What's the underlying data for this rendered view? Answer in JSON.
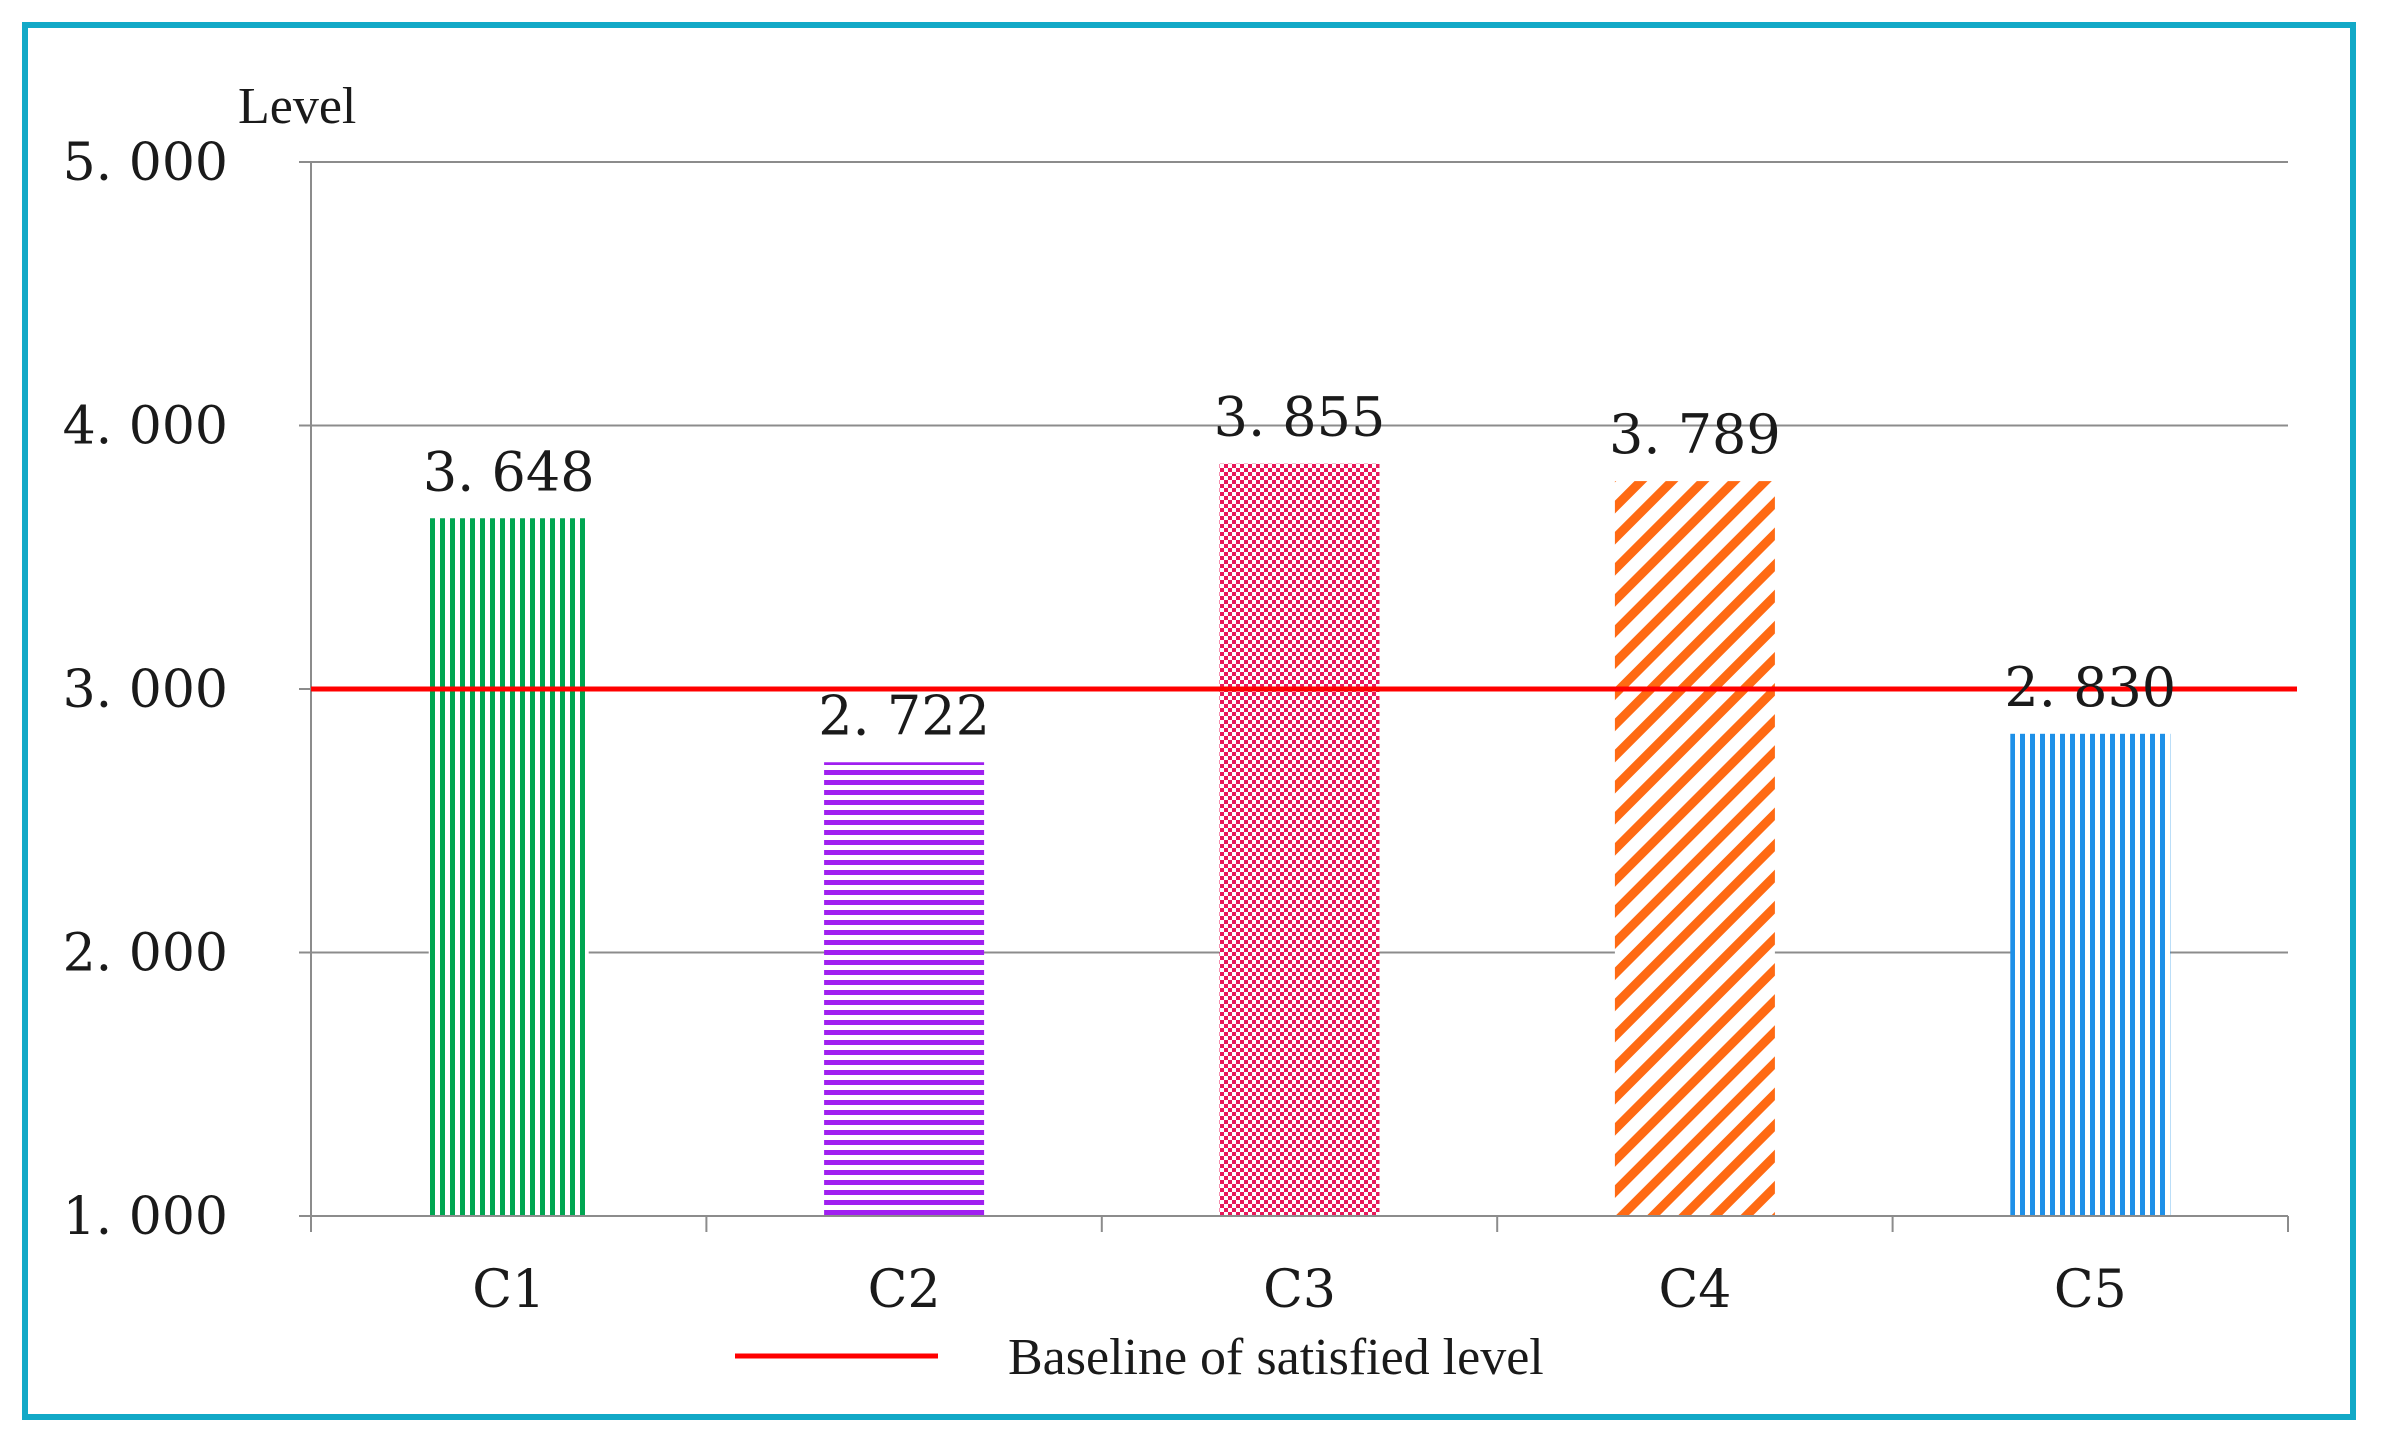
{
  "chart_data": {
    "type": "bar",
    "categories": [
      "C1",
      "C2",
      "C3",
      "C4",
      "C5"
    ],
    "values": [
      3.648,
      2.722,
      3.855,
      3.789,
      2.83
    ],
    "value_labels": [
      "3. 648",
      "2. 722",
      "3. 855",
      "3. 789",
      "2. 830"
    ],
    "bar_colors": [
      "#00a651",
      "#a020f0",
      "#e8195a",
      "#ff6a13",
      "#1e90e8"
    ],
    "bar_patterns": [
      "vertical-lines",
      "horizontal-lines",
      "checker",
      "diagonal-lines",
      "vertical-lines"
    ],
    "ylabel": "Level",
    "xlabel": "",
    "ylim": [
      1.0,
      5.0
    ],
    "yticks": [
      1.0,
      2.0,
      3.0,
      4.0,
      5.0
    ],
    "ytick_labels": [
      "1. 000",
      "2. 000",
      "3. 000",
      "4. 000",
      "5. 000"
    ],
    "grid": true,
    "reference_line": {
      "value": 3.0,
      "color": "#ff0000",
      "label": "Baseline of satisfied level"
    },
    "legend_position": "bottom-center",
    "frame_color": "#12a9c7"
  }
}
